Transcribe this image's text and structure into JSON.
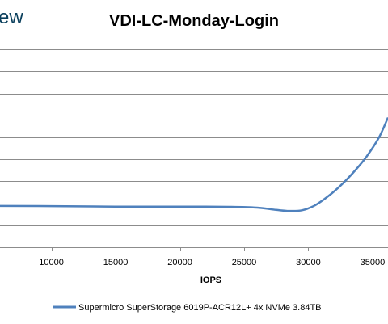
{
  "logo_fragment": "ew",
  "colors": {
    "series": "#4f81bd",
    "grid": "#8c8c8c",
    "axis": "#8c8c8c"
  },
  "chart_data": {
    "type": "line",
    "title": "VDI-LC-Monday-Login",
    "xlabel": "IOPS",
    "ylabel": "",
    "xlim": [
      6000,
      36200
    ],
    "ylim": [
      0,
      10
    ],
    "x_ticks": [
      10000,
      15000,
      20000,
      25000,
      30000,
      35000
    ],
    "y_gridlines": [
      1,
      2,
      3,
      4,
      5,
      6,
      7,
      8,
      9
    ],
    "grid": true,
    "legend_position": "bottom",
    "series": [
      {
        "name": "Supermicro SuperStorage 6019P-ACR12L+ 4x NVMe 3.84TB",
        "x": [
          6000,
          10000,
          15000,
          20000,
          24000,
          26000,
          27500,
          28500,
          29500,
          30500,
          31500,
          32500,
          33500,
          34500,
          35500,
          36200
        ],
        "y": [
          1.88,
          1.87,
          1.85,
          1.85,
          1.84,
          1.8,
          1.7,
          1.65,
          1.68,
          1.9,
          2.3,
          2.8,
          3.4,
          4.1,
          5.0,
          5.9
        ]
      }
    ]
  }
}
